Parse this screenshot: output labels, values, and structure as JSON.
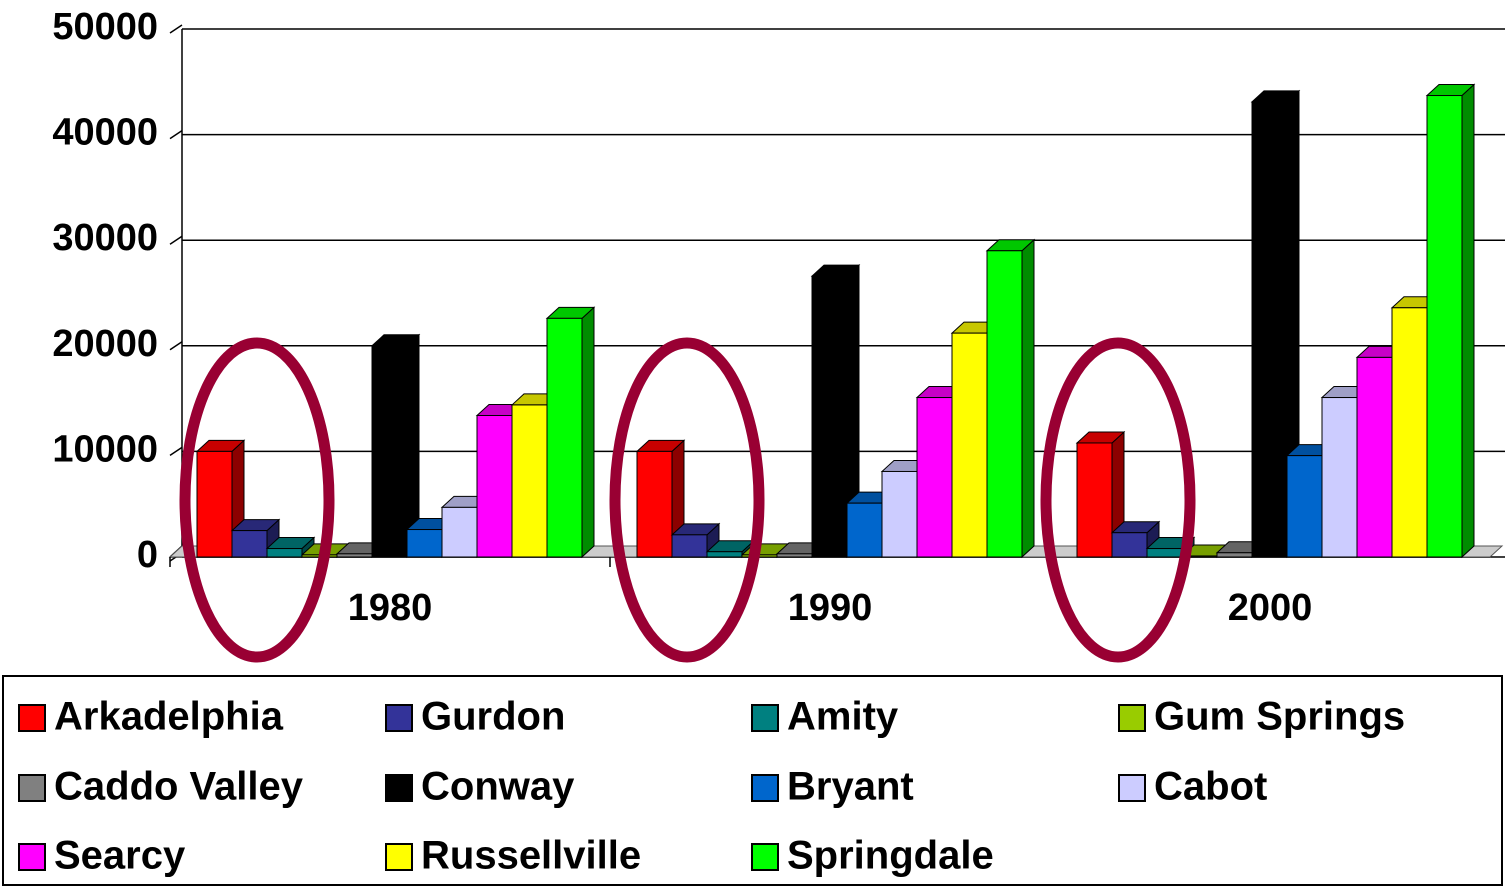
{
  "chart_data": {
    "type": "bar",
    "categories": [
      "1980",
      "1990",
      "2000"
    ],
    "series": [
      {
        "name": "Arkadelphia",
        "color": "#ff0000",
        "values": [
          10000,
          10000,
          10800
        ]
      },
      {
        "name": "Gurdon",
        "color": "#333399",
        "values": [
          2500,
          2100,
          2300
        ]
      },
      {
        "name": "Amity",
        "color": "#008080",
        "values": [
          800,
          500,
          800
        ]
      },
      {
        "name": "Gum Springs",
        "color": "#99cc00",
        "values": [
          200,
          200,
          100
        ]
      },
      {
        "name": "Caddo Valley",
        "color": "#808080",
        "values": [
          300,
          300,
          400
        ]
      },
      {
        "name": "Conway",
        "color": "#000000",
        "values": [
          20000,
          26600,
          43100
        ]
      },
      {
        "name": "Bryant",
        "color": "#0066cc",
        "values": [
          2600,
          5100,
          9600
        ]
      },
      {
        "name": "Cabot",
        "color": "#ccccff",
        "values": [
          4700,
          8100,
          15100
        ]
      },
      {
        "name": "Searcy",
        "color": "#ff00ff",
        "values": [
          13400,
          15100,
          18900
        ]
      },
      {
        "name": "Russellville",
        "color": "#ffff00",
        "values": [
          14400,
          21200,
          23600
        ]
      },
      {
        "name": "Springdale",
        "color": "#00ff00",
        "values": [
          22600,
          29000,
          43700
        ]
      }
    ],
    "ylim": [
      0,
      50000
    ],
    "yticks": [
      0,
      10000,
      20000,
      30000,
      40000,
      50000
    ],
    "grid": true,
    "legend": "bottom"
  }
}
